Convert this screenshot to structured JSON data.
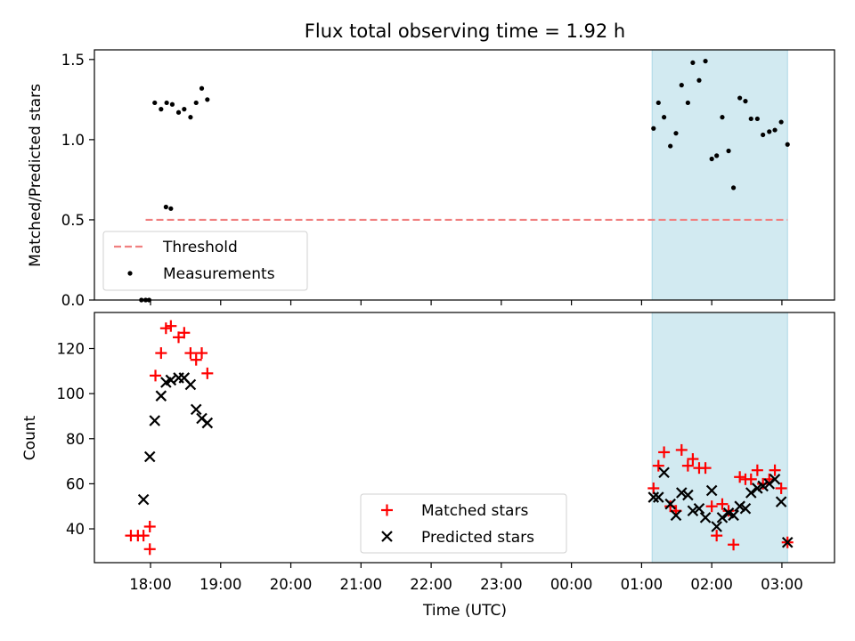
{
  "chart_data": {
    "title": "Flux total observing time = 1.92 h",
    "xlabel": "Time (UTC)",
    "x_units": "hours since 17:00 UTC (ticks shown as clock times)",
    "xlim": [
      0.2,
      10.75
    ],
    "xticks": [
      {
        "value": 1,
        "label": "18:00"
      },
      {
        "value": 2,
        "label": "19:00"
      },
      {
        "value": 3,
        "label": "20:00"
      },
      {
        "value": 4,
        "label": "21:00"
      },
      {
        "value": 5,
        "label": "22:00"
      },
      {
        "value": 6,
        "label": "23:00"
      },
      {
        "value": 7,
        "label": "00:00"
      },
      {
        "value": 8,
        "label": "01:00"
      },
      {
        "value": 9,
        "label": "02:00"
      },
      {
        "value": 10,
        "label": "03:00"
      }
    ],
    "shaded_region": {
      "x": [
        8.15,
        10.08
      ],
      "color": "#add8e6"
    },
    "panels": [
      {
        "type": "scatter",
        "ylabel": "Matched/Predicted stars",
        "ylim": [
          0,
          1.56
        ],
        "yticks": [
          0.0,
          0.5,
          1.0,
          1.5
        ],
        "ytick_labels": [
          "0.0",
          "0.5",
          "1.0",
          "1.5"
        ],
        "legend_position": "lower-left",
        "series": [
          {
            "name": "Threshold",
            "kind": "dashed-line",
            "color": "#f08080",
            "x": [
              0.93,
              10.08
            ],
            "y": [
              0.5,
              0.5
            ]
          },
          {
            "name": "Measurements",
            "kind": "dots",
            "color": "#000000",
            "x": [
              0.87,
              0.93,
              0.98,
              1.22,
              1.29,
              1.06,
              1.15,
              1.23,
              1.31,
              1.4,
              1.48,
              1.57,
              1.65,
              1.73,
              1.81,
              8.17,
              8.24,
              8.32,
              8.41,
              8.49,
              8.57,
              8.66,
              8.73,
              8.82,
              8.91,
              9.0,
              9.07,
              9.15,
              9.24,
              9.31,
              9.4,
              9.48,
              9.56,
              9.65,
              9.73,
              9.82,
              9.9,
              9.99,
              10.08
            ],
            "y": [
              0.0,
              0.0,
              0.0,
              0.58,
              0.57,
              1.23,
              1.19,
              1.23,
              1.22,
              1.17,
              1.19,
              1.14,
              1.23,
              1.32,
              1.25,
              1.07,
              1.23,
              1.14,
              0.96,
              1.04,
              1.34,
              1.23,
              1.48,
              1.37,
              1.49,
              0.88,
              0.9,
              1.14,
              0.93,
              0.7,
              1.26,
              1.24,
              1.13,
              1.13,
              1.03,
              1.05,
              1.06,
              1.11,
              0.97
            ]
          }
        ]
      },
      {
        "type": "scatter",
        "ylabel": "Count",
        "ylim": [
          25,
          136
        ],
        "yticks": [
          40,
          60,
          80,
          100,
          120
        ],
        "ytick_labels": [
          "40",
          "60",
          "80",
          "100",
          "120"
        ],
        "legend_position": "lower-center",
        "series": [
          {
            "name": "Matched stars",
            "marker": "plus",
            "color": "#ff0000",
            "x": [
              0.72,
              0.82,
              0.9,
              0.99,
              0.99,
              1.07,
              1.15,
              1.22,
              1.29,
              1.4,
              1.48,
              1.57,
              1.65,
              1.73,
              1.81,
              8.17,
              8.24,
              8.32,
              8.41,
              8.49,
              8.57,
              8.66,
              8.73,
              8.82,
              8.91,
              9.0,
              9.07,
              9.15,
              9.24,
              9.31,
              9.4,
              9.48,
              9.56,
              9.65,
              9.73,
              9.82,
              9.9,
              9.99,
              10.08
            ],
            "y": [
              37,
              37,
              37,
              31,
              41,
              108,
              118,
              129,
              130,
              125,
              127,
              118,
              115,
              118,
              109,
              58,
              68,
              74,
              50,
              48,
              75,
              68,
              71,
              67,
              67,
              50,
              37,
              51,
              48,
              33,
              63,
              62,
              62,
              66,
              60,
              62,
              66,
              58,
              34
            ]
          },
          {
            "name": "Predicted stars",
            "marker": "x",
            "color": "#000000",
            "x": [
              0.9,
              0.99,
              1.06,
              1.15,
              1.22,
              1.29,
              1.4,
              1.48,
              1.57,
              1.65,
              1.73,
              1.81,
              8.17,
              8.24,
              8.32,
              8.41,
              8.49,
              8.57,
              8.66,
              8.73,
              8.82,
              8.91,
              9.0,
              9.07,
              9.15,
              9.24,
              9.31,
              9.4,
              9.48,
              9.56,
              9.65,
              9.73,
              9.82,
              9.9,
              9.99,
              10.08
            ],
            "y": [
              53,
              72,
              88,
              99,
              105,
              106,
              107,
              107,
              104,
              93,
              89,
              87,
              54,
              54,
              65,
              51,
              46,
              56,
              55,
              48,
              49,
              45,
              57,
              41,
              45,
              47,
              46,
              50,
              49,
              56,
              58,
              59,
              60,
              62,
              52,
              34
            ]
          }
        ]
      }
    ]
  }
}
